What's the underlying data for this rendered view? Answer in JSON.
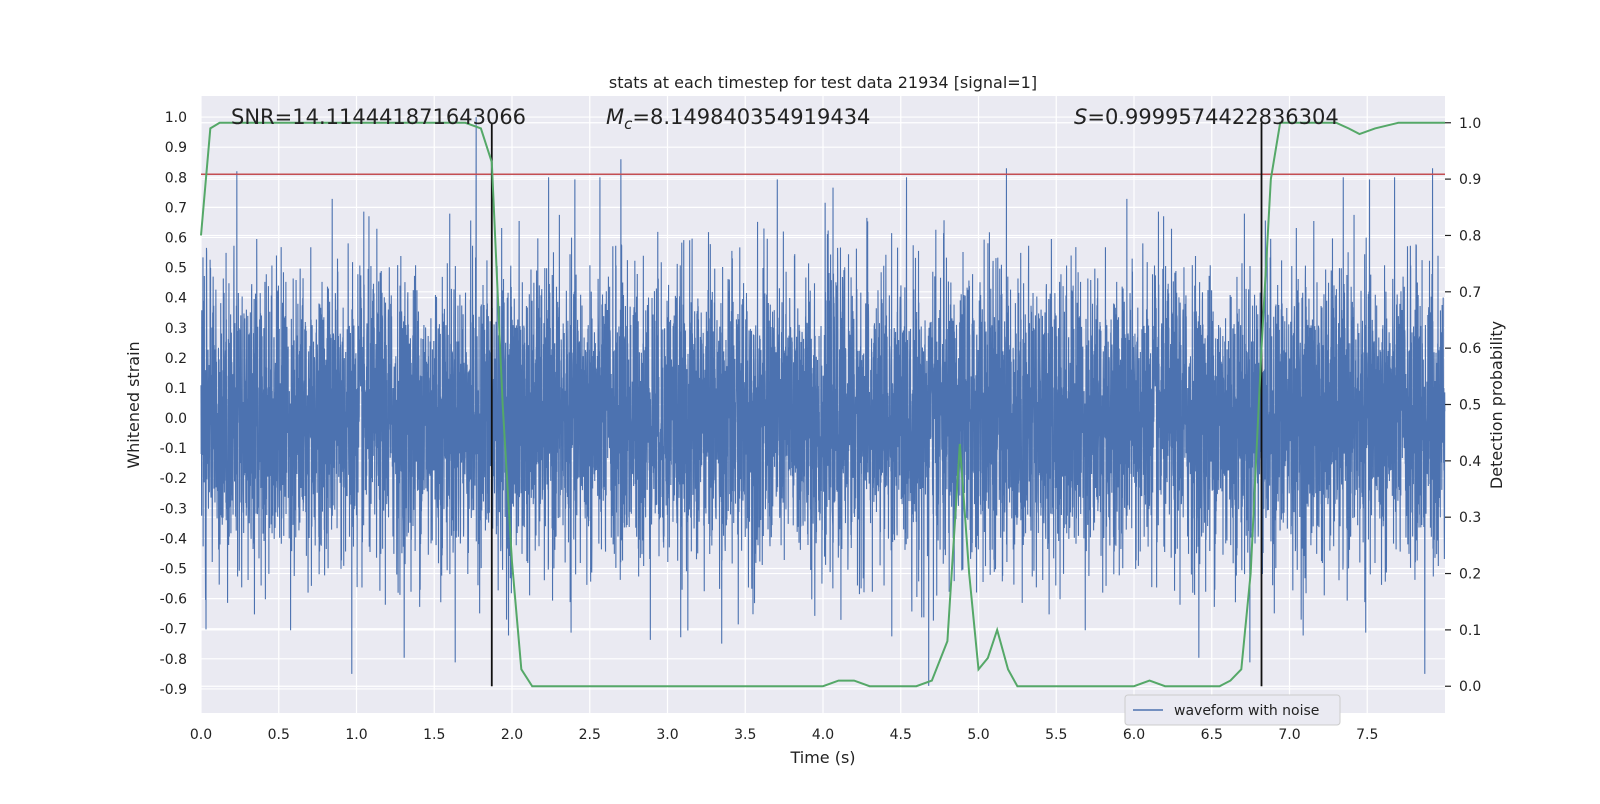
{
  "chart_data": {
    "type": "line",
    "title": "stats at each timestep for test data 21934 [signal=1]",
    "xlabel": "Time (s)",
    "ylabel": "Whitened strain",
    "y2label": "Detection probability",
    "xlim": [
      0.0,
      8.0
    ],
    "ylim": [
      -0.98,
      1.07
    ],
    "y2lim": [
      -0.0475,
      1.0475
    ],
    "xticks": [
      "0.0",
      "0.5",
      "1.0",
      "1.5",
      "2.0",
      "2.5",
      "3.0",
      "3.5",
      "4.0",
      "4.5",
      "5.0",
      "5.5",
      "6.0",
      "6.5",
      "7.0",
      "7.5"
    ],
    "yticks": [
      "1.0",
      "0.9",
      "0.8",
      "0.7",
      "0.6",
      "0.5",
      "0.4",
      "0.3",
      "0.2",
      "0.1",
      "0.0",
      "-0.1",
      "-0.2",
      "-0.3",
      "-0.4",
      "-0.5",
      "-0.6",
      "-0.7",
      "-0.8",
      "-0.9"
    ],
    "y2ticks": [
      "1.0",
      "0.9",
      "0.8",
      "0.7",
      "0.6",
      "0.5",
      "0.4",
      "0.3",
      "0.2",
      "0.1",
      "0.0"
    ],
    "annotations": [
      {
        "name": "snr",
        "text": "SNR=14.114441871643066"
      },
      {
        "name": "mc",
        "symbol": "M",
        "subscript": "c",
        "text": "=8.149840354919434"
      },
      {
        "name": "s",
        "symbol": "S",
        "text": "=0.9999574422836304"
      }
    ],
    "threshold": {
      "y": 0.81,
      "color": "#c44e52"
    },
    "event_lines": [
      1.87,
      6.82
    ],
    "series": [
      {
        "name": "waveform with noise",
        "color": "#4c72b0",
        "kind": "noise-waveform",
        "axis": "left",
        "sample_rate": 1024,
        "duration": 8.0,
        "amplitude_range": [
          -0.87,
          1.0
        ],
        "notable_peaks": [
          {
            "x": 1.77,
            "y": 1.0
          },
          {
            "x": 2.7,
            "y": 0.86
          },
          {
            "x": 0.23,
            "y": 0.82
          },
          {
            "x": 5.18,
            "y": 0.83
          },
          {
            "x": 7.92,
            "y": 0.83
          },
          {
            "x": 0.97,
            "y": -0.85
          },
          {
            "x": 4.68,
            "y": -0.89
          },
          {
            "x": 7.87,
            "y": -0.85
          }
        ]
      },
      {
        "name": "detection probability",
        "color": "#55a868",
        "axis": "right",
        "x": [
          0.0,
          0.06,
          0.12,
          0.5,
          1.0,
          1.5,
          1.7,
          1.8,
          1.87,
          1.94,
          2.0,
          2.06,
          2.13,
          2.2,
          2.5,
          2.8,
          3.0,
          3.2,
          3.5,
          3.8,
          4.0,
          4.1,
          4.2,
          4.3,
          4.5,
          4.6,
          4.7,
          4.8,
          4.88,
          4.94,
          5.0,
          5.06,
          5.12,
          5.19,
          5.25,
          5.4,
          5.6,
          6.0,
          6.1,
          6.2,
          6.4,
          6.55,
          6.62,
          6.69,
          6.75,
          6.82,
          6.88,
          6.94,
          7.0,
          7.2,
          7.3,
          7.38,
          7.45,
          7.55,
          7.7,
          8.0
        ],
        "y": [
          0.8,
          0.99,
          1.0,
          1.0,
          1.0,
          1.0,
          1.0,
          0.99,
          0.93,
          0.5,
          0.22,
          0.03,
          0.0,
          0.0,
          0.0,
          0.0,
          0.0,
          0.0,
          0.0,
          0.0,
          0.0,
          0.01,
          0.01,
          0.0,
          0.0,
          0.0,
          0.01,
          0.08,
          0.43,
          0.2,
          0.03,
          0.05,
          0.1,
          0.03,
          0.0,
          0.0,
          0.0,
          0.0,
          0.01,
          0.0,
          0.0,
          0.0,
          0.01,
          0.03,
          0.2,
          0.6,
          0.9,
          1.0,
          1.0,
          1.0,
          1.0,
          0.99,
          0.98,
          0.99,
          1.0,
          1.0
        ]
      }
    ],
    "legend": {
      "entries": [
        "waveform with noise"
      ],
      "location": "lower-right"
    }
  }
}
